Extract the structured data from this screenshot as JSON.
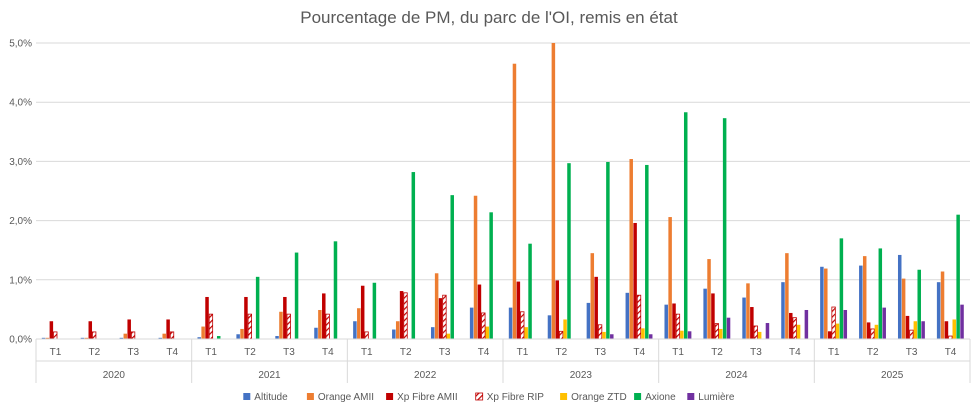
{
  "chart_data": {
    "type": "bar",
    "title": "Pourcentage de PM, du parc de l'OI, remis en état",
    "ylim": [
      0,
      5
    ],
    "y_ticks": [
      "0,0%",
      "1,0%",
      "2,0%",
      "3,0%",
      "4,0%",
      "5,0%"
    ],
    "grid": "horizontal",
    "legend_position": "bottom",
    "years": [
      "2020",
      "2021",
      "2022",
      "2023",
      "2024",
      "2025"
    ],
    "quarters": [
      "T1",
      "T2",
      "T3",
      "T4"
    ],
    "series": [
      {
        "name": "Altitude",
        "color": "#4472C4",
        "pattern": "solid",
        "values": [
          0.02,
          0.02,
          0.02,
          0.02,
          0.03,
          0.08,
          0.05,
          0.19,
          0.3,
          0.16,
          0.2,
          0.53,
          0.53,
          0.4,
          0.61,
          0.78,
          0.58,
          0.85,
          0.7,
          0.96,
          1.22,
          1.24,
          1.42,
          0.96
        ]
      },
      {
        "name": "Orange AMII",
        "color": "#ED7D31",
        "pattern": "solid",
        "values": [
          0.02,
          0.02,
          0.09,
          0.09,
          0.21,
          0.17,
          0.46,
          0.49,
          0.52,
          0.3,
          1.11,
          2.42,
          4.65,
          5.0,
          1.45,
          3.04,
          2.06,
          1.35,
          0.94,
          1.45,
          1.19,
          1.4,
          1.02,
          1.14
        ]
      },
      {
        "name": "Xp Fibre AMII",
        "color": "#C00000",
        "pattern": "solid",
        "values": [
          0.3,
          0.3,
          0.33,
          0.33,
          0.71,
          0.71,
          0.71,
          0.77,
          0.9,
          0.81,
          0.69,
          0.92,
          0.97,
          0.99,
          1.05,
          1.96,
          0.6,
          0.77,
          0.54,
          0.44,
          0.13,
          0.28,
          0.39,
          0.3
        ]
      },
      {
        "name": "Xp Fibre RIP",
        "color": "#C00000",
        "pattern": "hatch",
        "values": [
          0.12,
          0.12,
          0.12,
          0.12,
          0.42,
          0.42,
          0.42,
          0.42,
          0.12,
          0.78,
          0.74,
          0.44,
          0.46,
          0.13,
          0.24,
          0.74,
          0.42,
          0.26,
          0.22,
          0.36,
          0.54,
          0.17,
          0.15,
          0.05
        ]
      },
      {
        "name": "Orange ZTD",
        "color": "#FFC000",
        "pattern": "solid",
        "values": [
          0.0,
          0.0,
          0.0,
          0.0,
          0.0,
          0.0,
          0.0,
          0.0,
          0.0,
          0.0,
          0.09,
          0.21,
          0.2,
          0.33,
          0.12,
          0.18,
          0.14,
          0.17,
          0.12,
          0.24,
          0.26,
          0.24,
          0.3,
          0.33
        ]
      },
      {
        "name": "Axione",
        "color": "#00B050",
        "pattern": "solid",
        "values": [
          0.0,
          0.0,
          0.0,
          0.0,
          0.05,
          1.05,
          1.46,
          1.65,
          0.95,
          2.82,
          2.43,
          2.14,
          1.61,
          2.97,
          2.99,
          2.94,
          3.83,
          3.73,
          0.0,
          0.0,
          1.7,
          1.53,
          1.17,
          2.1
        ]
      },
      {
        "name": "Lumière",
        "color": "#7030A0",
        "pattern": "solid",
        "values": [
          0.0,
          0.0,
          0.0,
          0.0,
          0.0,
          0.0,
          0.0,
          0.0,
          0.0,
          0.0,
          0.0,
          0.0,
          0.0,
          0.0,
          0.08,
          0.08,
          0.13,
          0.36,
          0.27,
          0.49,
          0.49,
          0.53,
          0.3,
          0.58
        ]
      }
    ]
  }
}
